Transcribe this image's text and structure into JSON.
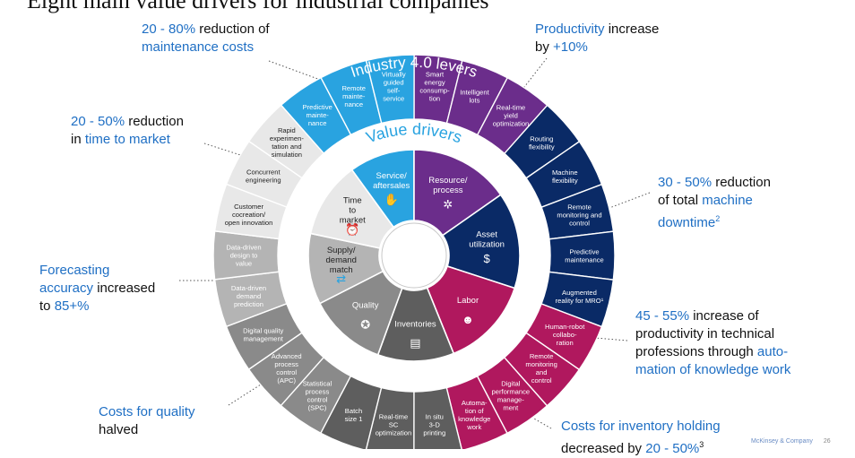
{
  "title": "Eight main value drivers for industrial companies",
  "ring_title_outer": "Industry 4.0 levers",
  "ring_title_inner": "Value drivers",
  "colors": {
    "resource": "#6b2d8b",
    "asset": "#0a2a66",
    "labor": "#b0185e",
    "inventories": "#5e5e5e",
    "quality": "#8a8a8a",
    "supply": "#b4b4b4",
    "time_to_market": "#e8e8e8",
    "service": "#29a3e0",
    "accent_text": "#1f6fc4"
  },
  "drivers": [
    {
      "label": "Service/\naftersales",
      "color_key": "service",
      "text_color": "#ffffff",
      "icon": "wrench-icon"
    },
    {
      "label": "Resource/\nprocess",
      "color_key": "resource",
      "text_color": "#ffffff",
      "icon": "gear-icon"
    },
    {
      "label": "Asset\nutilization",
      "color_key": "asset",
      "text_color": "#ffffff",
      "icon": "money-hand-icon"
    },
    {
      "label": "Labor",
      "color_key": "labor",
      "text_color": "#ffffff",
      "icon": "people-icon"
    },
    {
      "label": "Inventories",
      "color_key": "inventories",
      "text_color": "#ffffff",
      "icon": "document-icon"
    },
    {
      "label": "Quality",
      "color_key": "quality",
      "text_color": "#ffffff",
      "icon": "medal-icon"
    },
    {
      "label": "Supply/\ndemand\nmatch",
      "color_key": "supply",
      "text_color": "#222222",
      "icon": "arrows-icon"
    },
    {
      "label": "Time\nto\nmarket",
      "color_key": "time_to_market",
      "text_color": "#222222",
      "icon": "clock-icon"
    }
  ],
  "levers": [
    {
      "label": "Predictive\nmainte-\nnance",
      "color_key": "service"
    },
    {
      "label": "Remote\nmainte-\nnance",
      "color_key": "service"
    },
    {
      "label": "Virtually\nguided\nself-\nservice",
      "color_key": "service"
    },
    {
      "label": "Smart\nenergy\nconsump-\ntion",
      "color_key": "resource"
    },
    {
      "label": "Intelligent\nlots",
      "color_key": "resource"
    },
    {
      "label": "Real-time\nyield\noptimization",
      "color_key": "resource"
    },
    {
      "label": "Routing\nflexibility",
      "color_key": "asset"
    },
    {
      "label": "Machine\nflexibility",
      "color_key": "asset"
    },
    {
      "label": "Remote\nmonitoring and\ncontrol",
      "color_key": "asset"
    },
    {
      "label": "Predictive\nmaintenance",
      "color_key": "asset"
    },
    {
      "label": "Augmented\nreality for MRO¹",
      "color_key": "asset"
    },
    {
      "label": "Human-robot\ncollabo-\nration",
      "color_key": "labor"
    },
    {
      "label": "Remote\nmonitoring\nand\ncontrol",
      "color_key": "labor"
    },
    {
      "label": "Digital\nperformance\nmanage-\nment",
      "color_key": "labor"
    },
    {
      "label": "Automa-\ntion of\nknowledge\nwork",
      "color_key": "labor"
    },
    {
      "label": "In situ\n3-D\nprinting",
      "color_key": "inventories"
    },
    {
      "label": "Real-time\nSC\noptimization",
      "color_key": "inventories"
    },
    {
      "label": "Batch\nsize 1",
      "color_key": "inventories"
    },
    {
      "label": "Statistical\nprocess\ncontrol\n(SPC)",
      "color_key": "quality"
    },
    {
      "label": "Advanced\nprocess\ncontrol\n(APC)",
      "color_key": "quality"
    },
    {
      "label": "Digital quality\nmanagement",
      "color_key": "quality"
    },
    {
      "label": "Data-driven\ndemand\nprediction",
      "color_key": "supply"
    },
    {
      "label": "Data-driven\ndesign to\nvalue",
      "color_key": "supply"
    },
    {
      "label": "Customer\ncocreation/\nopen innovation",
      "color_key": "time_to_market"
    },
    {
      "label": "Concurrent\nengineering",
      "color_key": "time_to_market"
    },
    {
      "label": "Rapid\nexperimen-\ntation and\nsimulation",
      "color_key": "time_to_market"
    }
  ],
  "callouts": {
    "maintenance": {
      "value": "20 - 80%",
      "text1": " reduction of",
      "text2": "maintenance costs"
    },
    "productivity": {
      "text1": "Productivity",
      "text2": " increase",
      "text3": "by ",
      "value": "+10%"
    },
    "time_to_market": {
      "value": "20 - 50%",
      "text1": " reduction",
      "text2": "in ",
      "text3": "time to market"
    },
    "downtime": {
      "value": "30 - 50%",
      "text1": " reduction",
      "text2": "of total ",
      "text3": "machine",
      "text4": "downtime",
      "sup": "2"
    },
    "forecasting": {
      "text1": "Forecasting",
      "text2": "accuracy",
      "text3": " increased",
      "text4": "to ",
      "value": "85+%"
    },
    "labor": {
      "value": "45 - 55%",
      "text1": " increase of",
      "text2": "productivity in technical",
      "text3": "professions through ",
      "text4": "auto-",
      "text5": "mation of knowledge work"
    },
    "quality": {
      "text1": "Costs for quality",
      "text2": "halved"
    },
    "inventory": {
      "text1": "Costs for inventory holding",
      "text2": "decreased by ",
      "value": "20 - 50%",
      "sup": "3"
    }
  },
  "footer": {
    "company": "McKinsey & Company",
    "page": "26"
  }
}
